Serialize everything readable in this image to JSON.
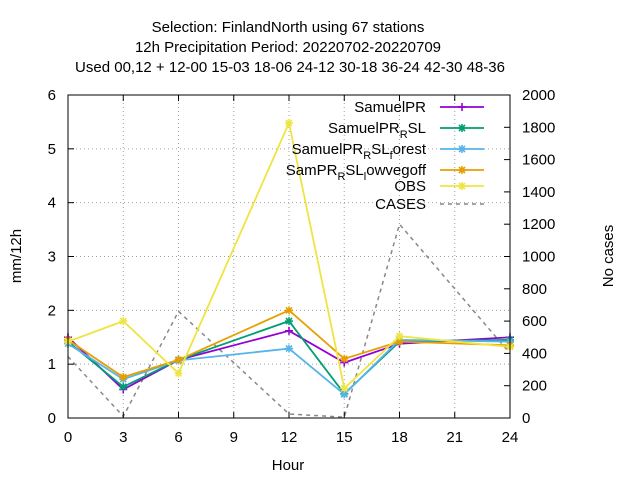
{
  "chart_data": {
    "type": "line",
    "title_lines": [
      "Selection: FinlandNorth using    67 stations",
      "12h Precipitation    Period: 20220702-20220709",
      "Used  00,12  + 12-00 15-03 18-06 24-12 30-18 36-24 42-30 48-36"
    ],
    "xlabel": "Hour",
    "ylabel": "mm/12h",
    "y2label": "No cases",
    "x": [
      0,
      3,
      6,
      9,
      12,
      15,
      18,
      21,
      24
    ],
    "xticks": [
      "0",
      "3",
      "6",
      "9",
      "12",
      "15",
      "18",
      "21",
      "24"
    ],
    "xlim": [
      0,
      24
    ],
    "ylim": [
      0,
      6
    ],
    "yticks": [
      "0",
      "1",
      "2",
      "3",
      "4",
      "5",
      "6"
    ],
    "y2lim": [
      0,
      2000
    ],
    "y2ticks": [
      "0",
      "200",
      "400",
      "600",
      "800",
      "1000",
      "1200",
      "1400",
      "1600",
      "1800",
      "2000"
    ],
    "grid": true,
    "legend_position": "top-right",
    "series": [
      {
        "name": "SamuelPR",
        "color": "#9400d3",
        "marker": "plus",
        "x": [
          0,
          3,
          6,
          12,
          15,
          18,
          24
        ],
        "values": [
          1.5,
          0.53,
          1.08,
          1.62,
          1.03,
          1.38,
          1.5
        ]
      },
      {
        "name": "SamuelPR_RSL",
        "color": "#009e73",
        "marker": "star",
        "x": [
          0,
          3,
          6,
          12,
          15,
          18,
          24
        ],
        "values": [
          1.42,
          0.58,
          1.08,
          1.8,
          0.45,
          1.42,
          1.45
        ]
      },
      {
        "name": "SamuelPR_RSL_forest",
        "color": "#56b4e9",
        "marker": "star",
        "x": [
          0,
          3,
          6,
          12,
          15,
          18,
          24
        ],
        "values": [
          1.38,
          0.72,
          1.07,
          1.29,
          0.44,
          1.45,
          1.42
        ]
      },
      {
        "name": "SamPR_RSL_lowvegoff",
        "color": "#e69f00",
        "marker": "star",
        "x": [
          0,
          3,
          6,
          12,
          15,
          18,
          24
        ],
        "values": [
          1.45,
          0.76,
          1.08,
          2.0,
          1.1,
          1.42,
          1.35
        ]
      },
      {
        "name": "OBS",
        "color": "#f0e442",
        "marker": "star",
        "x": [
          0,
          3,
          6,
          12,
          15,
          18,
          24
        ],
        "values": [
          1.42,
          1.8,
          0.83,
          5.48,
          0.55,
          1.52,
          1.32
        ]
      },
      {
        "name": "CASES",
        "color": "#888888",
        "marker": "none",
        "axis": "y2",
        "x": [
          0,
          3,
          6,
          12,
          15,
          18,
          24
        ],
        "values": [
          380,
          10,
          660,
          25,
          5,
          1200,
          400
        ]
      }
    ],
    "legend": [
      {
        "base": "SamuelPR",
        "sub": ""
      },
      {
        "base": "SamuelPR",
        "sub": "R",
        "tail": "SL"
      },
      {
        "base": "SamuelPR",
        "sub": "R",
        "tail": "SL",
        "sub2": "f",
        "tail2": "orest"
      },
      {
        "base": "SamPR",
        "sub": "R",
        "tail": "SL",
        "sub2": "l",
        "tail2": "owvegoff"
      },
      {
        "base": "OBS",
        "sub": ""
      },
      {
        "base": "CASES",
        "sub": ""
      }
    ]
  }
}
